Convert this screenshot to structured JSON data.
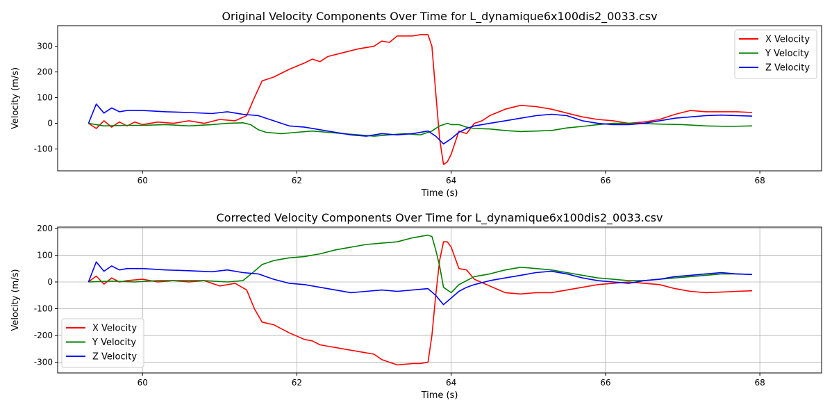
{
  "chart_data": [
    {
      "type": "line",
      "title": "Original Velocity Components Over Time for L_dynamique6x100dis2_0033.csv",
      "xlabel": "Time (s)",
      "ylabel": "Velocity (m/s)",
      "xlim": [
        58.9,
        68.8
      ],
      "ylim": [
        -185,
        380
      ],
      "xticks": [
        60,
        62,
        64,
        66,
        68
      ],
      "yticks": [
        -100,
        0,
        100,
        200,
        300
      ],
      "grid": false,
      "legend_position": "top-right",
      "series": [
        {
          "name": "X Velocity",
          "color": "#ff0000",
          "x": [
            59.3,
            59.4,
            59.5,
            59.6,
            59.7,
            59.8,
            59.9,
            60.0,
            60.2,
            60.4,
            60.6,
            60.8,
            61.0,
            61.2,
            61.35,
            61.45,
            61.55,
            61.7,
            61.9,
            62.1,
            62.2,
            62.3,
            62.4,
            62.6,
            62.8,
            63.0,
            63.1,
            63.2,
            63.3,
            63.5,
            63.6,
            63.7,
            63.75,
            63.8,
            63.85,
            63.9,
            63.95,
            64.0,
            64.1,
            64.2,
            64.3,
            64.4,
            64.5,
            64.7,
            64.9,
            65.1,
            65.3,
            65.5,
            65.7,
            65.9,
            66.1,
            66.3,
            66.5,
            66.7,
            66.9,
            67.1,
            67.3,
            67.5,
            67.7,
            67.9
          ],
          "y": [
            0,
            -20,
            10,
            -15,
            5,
            -10,
            5,
            -5,
            5,
            0,
            10,
            0,
            15,
            10,
            30,
            100,
            165,
            180,
            210,
            235,
            250,
            240,
            260,
            275,
            290,
            300,
            320,
            315,
            340,
            340,
            345,
            345,
            300,
            120,
            -60,
            -160,
            -150,
            -120,
            -30,
            -40,
            0,
            10,
            30,
            55,
            70,
            65,
            55,
            40,
            25,
            15,
            10,
            0,
            5,
            15,
            35,
            50,
            45,
            45,
            45,
            42
          ]
        },
        {
          "name": "Y Velocity",
          "color": "#008000",
          "x": [
            59.3,
            59.5,
            59.8,
            60.0,
            60.3,
            60.6,
            60.9,
            61.1,
            61.3,
            61.4,
            61.5,
            61.6,
            61.8,
            62.0,
            62.2,
            62.4,
            62.6,
            62.8,
            63.0,
            63.2,
            63.4,
            63.6,
            63.75,
            63.85,
            63.95,
            64.0,
            64.1,
            64.2,
            64.3,
            64.5,
            64.7,
            64.9,
            65.1,
            65.3,
            65.5,
            65.7,
            65.9,
            66.1,
            66.4,
            66.7,
            67.0,
            67.3,
            67.6,
            67.9
          ],
          "y": [
            0,
            -10,
            -8,
            -8,
            -5,
            -10,
            -5,
            0,
            2,
            -5,
            -25,
            -35,
            -40,
            -35,
            -30,
            -35,
            -40,
            -45,
            -50,
            -45,
            -40,
            -45,
            -30,
            -10,
            0,
            -5,
            -5,
            -15,
            -20,
            -22,
            -28,
            -32,
            -30,
            -28,
            -18,
            -12,
            -5,
            0,
            0,
            -3,
            -5,
            -10,
            -12,
            -10
          ]
        },
        {
          "name": "Z Velocity",
          "color": "#0000ff",
          "x": [
            59.3,
            59.4,
            59.5,
            59.6,
            59.7,
            59.8,
            60.0,
            60.3,
            60.6,
            60.9,
            61.1,
            61.3,
            61.5,
            61.7,
            61.9,
            62.1,
            62.3,
            62.5,
            62.7,
            62.9,
            63.1,
            63.3,
            63.5,
            63.7,
            63.8,
            63.9,
            64.0,
            64.1,
            64.2,
            64.3,
            64.5,
            64.7,
            64.9,
            65.1,
            65.3,
            65.5,
            65.7,
            65.9,
            66.1,
            66.3,
            66.5,
            66.7,
            66.9,
            67.1,
            67.3,
            67.5,
            67.7,
            67.9
          ],
          "y": [
            0,
            75,
            40,
            60,
            45,
            50,
            50,
            45,
            42,
            38,
            45,
            35,
            30,
            10,
            -10,
            -15,
            -25,
            -35,
            -45,
            -50,
            -40,
            -45,
            -40,
            -30,
            -50,
            -80,
            -60,
            -35,
            -20,
            -10,
            0,
            10,
            20,
            30,
            35,
            30,
            10,
            0,
            -5,
            -5,
            0,
            10,
            20,
            25,
            30,
            32,
            30,
            28
          ]
        }
      ]
    },
    {
      "type": "line",
      "title": "Corrected Velocity Components Over Time for L_dynamique6x100dis2_0033.csv",
      "xlabel": "Time (s)",
      "ylabel": "Velocity (m/s)",
      "xlim": [
        58.9,
        68.8
      ],
      "ylim": [
        -340,
        205
      ],
      "xticks": [
        60,
        62,
        64,
        66,
        68
      ],
      "yticks": [
        -300,
        -200,
        -100,
        0,
        100,
        200
      ],
      "grid": true,
      "legend_position": "bottom-left",
      "series": [
        {
          "name": "X Velocity",
          "color": "#ff0000",
          "x": [
            59.3,
            59.4,
            59.5,
            59.6,
            59.7,
            59.8,
            60.0,
            60.2,
            60.4,
            60.6,
            60.8,
            61.0,
            61.2,
            61.35,
            61.45,
            61.55,
            61.7,
            61.9,
            62.1,
            62.2,
            62.3,
            62.4,
            62.6,
            62.8,
            63.0,
            63.1,
            63.2,
            63.3,
            63.5,
            63.6,
            63.7,
            63.75,
            63.8,
            63.85,
            63.9,
            63.95,
            64.0,
            64.1,
            64.2,
            64.3,
            64.5,
            64.7,
            64.9,
            65.1,
            65.3,
            65.5,
            65.7,
            65.9,
            66.1,
            66.3,
            66.5,
            66.7,
            66.9,
            67.1,
            67.3,
            67.5,
            67.7,
            67.9
          ],
          "y": [
            0,
            22,
            -8,
            15,
            0,
            5,
            10,
            0,
            5,
            0,
            5,
            -15,
            -5,
            -30,
            -100,
            -150,
            -160,
            -190,
            -215,
            -220,
            -235,
            -240,
            -250,
            -260,
            -270,
            -290,
            -300,
            -310,
            -305,
            -305,
            -300,
            -200,
            -50,
            80,
            150,
            150,
            130,
            50,
            45,
            10,
            -15,
            -40,
            -45,
            -40,
            -40,
            -30,
            -20,
            -10,
            -5,
            0,
            -5,
            -10,
            -25,
            -35,
            -40,
            -38,
            -35,
            -33
          ]
        },
        {
          "name": "Y Velocity",
          "color": "#008000",
          "x": [
            59.3,
            59.6,
            59.9,
            60.2,
            60.5,
            60.8,
            61.1,
            61.3,
            61.45,
            61.55,
            61.7,
            61.9,
            62.1,
            62.3,
            62.5,
            62.7,
            62.9,
            63.1,
            63.3,
            63.5,
            63.7,
            63.75,
            63.8,
            63.85,
            63.9,
            64.0,
            64.1,
            64.2,
            64.3,
            64.5,
            64.7,
            64.9,
            65.1,
            65.3,
            65.5,
            65.7,
            65.9,
            66.1,
            66.3,
            66.5,
            66.7,
            66.9,
            67.1,
            67.3,
            67.5,
            67.7,
            67.9
          ],
          "y": [
            0,
            3,
            0,
            5,
            5,
            5,
            0,
            5,
            40,
            65,
            80,
            90,
            95,
            105,
            120,
            130,
            140,
            145,
            150,
            165,
            175,
            170,
            120,
            60,
            -20,
            -40,
            -10,
            5,
            20,
            30,
            45,
            55,
            50,
            45,
            35,
            25,
            15,
            10,
            5,
            5,
            10,
            15,
            20,
            25,
            30,
            30,
            28
          ]
        },
        {
          "name": "Z Velocity",
          "color": "#0000ff",
          "x": [
            59.3,
            59.4,
            59.5,
            59.6,
            59.7,
            59.8,
            60.0,
            60.3,
            60.6,
            60.9,
            61.1,
            61.3,
            61.5,
            61.7,
            61.9,
            62.1,
            62.3,
            62.5,
            62.7,
            62.9,
            63.1,
            63.3,
            63.5,
            63.7,
            63.8,
            63.9,
            64.0,
            64.1,
            64.2,
            64.3,
            64.5,
            64.7,
            64.9,
            65.1,
            65.3,
            65.5,
            65.7,
            65.9,
            66.1,
            66.3,
            66.5,
            66.7,
            66.9,
            67.1,
            67.3,
            67.5,
            67.7,
            67.9
          ],
          "y": [
            0,
            75,
            40,
            60,
            45,
            50,
            50,
            45,
            42,
            38,
            45,
            35,
            30,
            10,
            -5,
            -10,
            -20,
            -30,
            -40,
            -35,
            -30,
            -35,
            -30,
            -25,
            -50,
            -85,
            -60,
            -35,
            -20,
            -10,
            5,
            15,
            25,
            35,
            40,
            30,
            15,
            5,
            0,
            -5,
            5,
            10,
            20,
            25,
            30,
            35,
            30,
            28
          ]
        }
      ]
    }
  ]
}
